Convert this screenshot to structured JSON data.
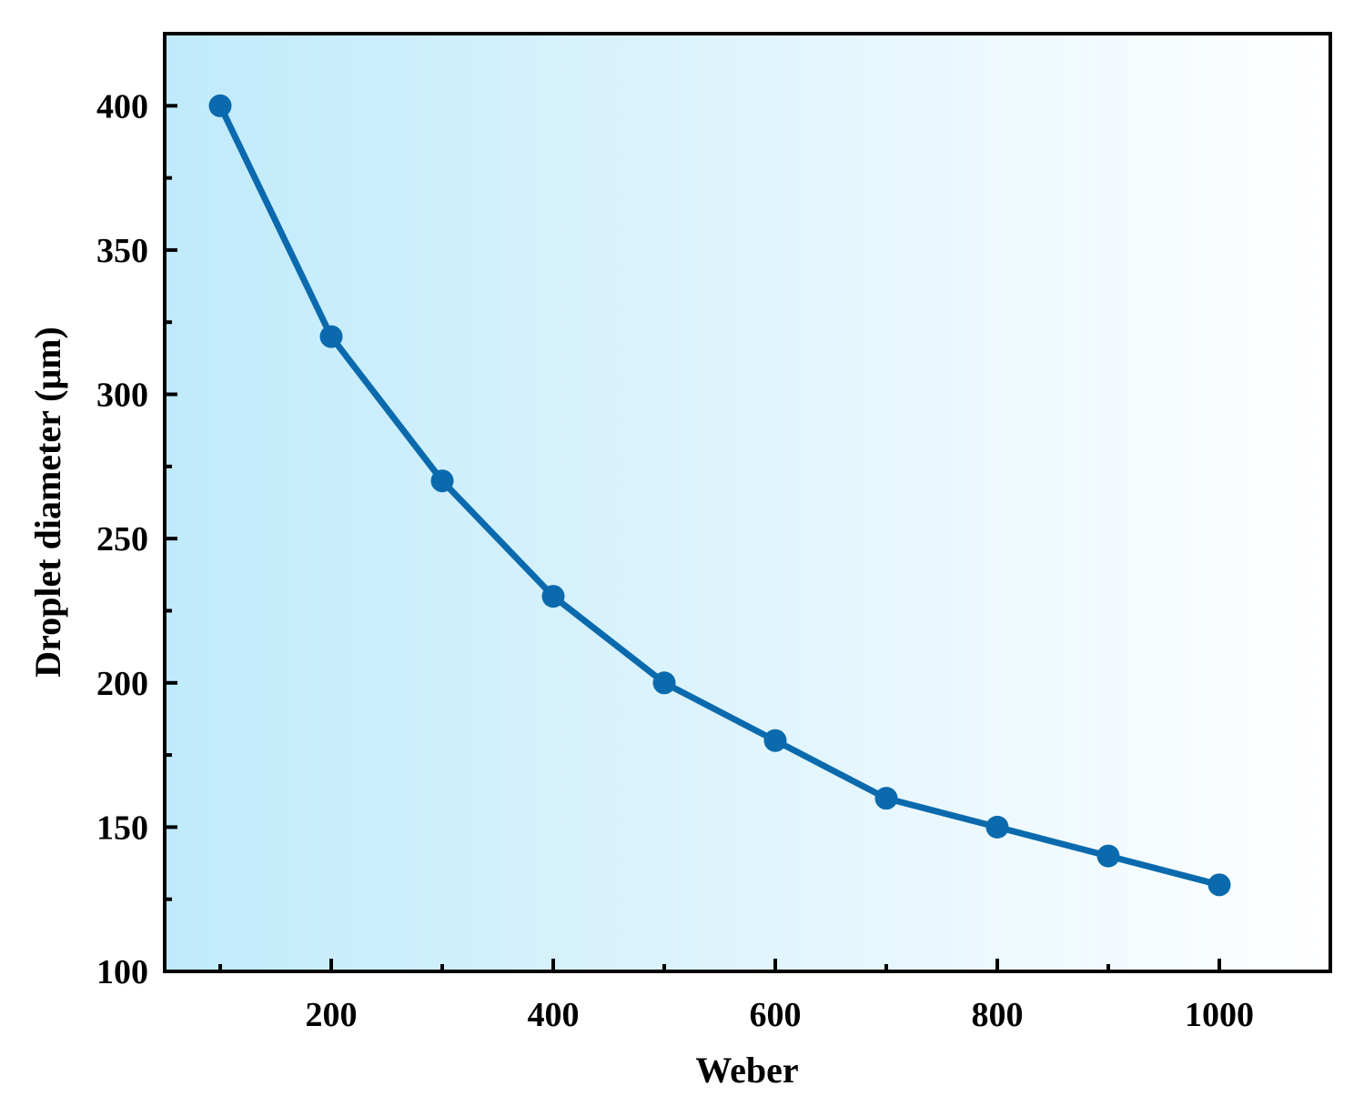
{
  "chart_data": {
    "type": "line",
    "title": "",
    "xlabel": "Weber",
    "ylabel": "Droplet diameter (μm)",
    "xlim": [
      50,
      1100
    ],
    "ylim": [
      100,
      425
    ],
    "x_ticks": [
      200,
      400,
      600,
      800,
      1000
    ],
    "x_tick_labels": [
      "200",
      "400",
      "600",
      "800",
      "1000"
    ],
    "x_minor_ticks": [
      100,
      300,
      500,
      700,
      900
    ],
    "y_ticks": [
      100,
      150,
      200,
      250,
      300,
      350,
      400
    ],
    "y_tick_labels": [
      "100",
      "150",
      "200",
      "250",
      "300",
      "350",
      "400"
    ],
    "y_minor_ticks": [
      125,
      175,
      225,
      275,
      325,
      375
    ],
    "grid": false,
    "legend": "none",
    "series": [
      {
        "name": "Droplet diameter",
        "x": [
          100,
          200,
          300,
          400,
          500,
          600,
          700,
          800,
          900,
          1000
        ],
        "y": [
          400,
          320,
          270,
          230,
          200,
          180,
          160,
          150,
          140,
          130
        ]
      }
    ],
    "colors": {
      "line": "#0a6aad",
      "marker": "#0a6aad",
      "background_left": "#c0eafb",
      "background_right": "#ffffff",
      "axis": "#000000"
    }
  }
}
